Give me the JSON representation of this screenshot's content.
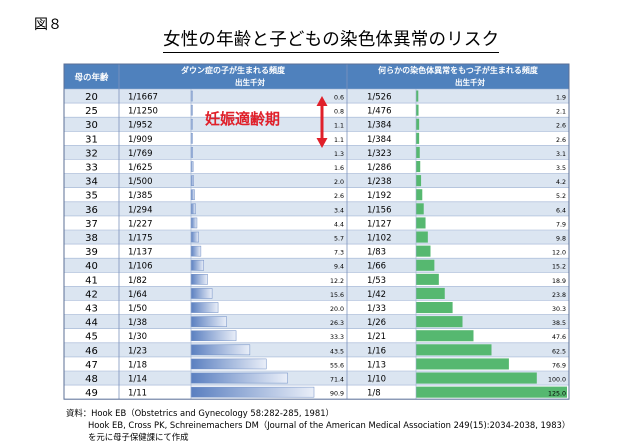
{
  "figure_label": "図８",
  "title": "女性の年齢と子どもの染色体異常のリスク",
  "annotation": "妊娠適齢期",
  "colors": {
    "header_bg": "#4f81bd",
    "row_alt": "#dbe5f1",
    "down_bar": "#7f9fd0",
    "chrom_bar": "#56b870",
    "annotation_text": "#e0202a",
    "annotation_arrow": "#e0202a"
  },
  "chart_data": {
    "type": "table",
    "columns": {
      "age": "母の年齢",
      "down_title": "ダウン症の子が生まれる頻度",
      "down_sub": "出生千対",
      "chrom_title": "何らかの染色体異常をもつ子が生まれる頻度",
      "chrom_sub": "出生千対"
    },
    "rows": [
      {
        "age": "20",
        "down_ratio": "1/1667",
        "down_per1000": 0.6,
        "chrom_ratio": "1/526",
        "chrom_per1000": 1.9
      },
      {
        "age": "25",
        "down_ratio": "1/1250",
        "down_per1000": 0.8,
        "chrom_ratio": "1/476",
        "chrom_per1000": 2.1
      },
      {
        "age": "30",
        "down_ratio": "1/952",
        "down_per1000": 1.1,
        "chrom_ratio": "1/384",
        "chrom_per1000": 2.6
      },
      {
        "age": "31",
        "down_ratio": "1/909",
        "down_per1000": 1.1,
        "chrom_ratio": "1/384",
        "chrom_per1000": 2.6
      },
      {
        "age": "32",
        "down_ratio": "1/769",
        "down_per1000": 1.3,
        "chrom_ratio": "1/323",
        "chrom_per1000": 3.1
      },
      {
        "age": "33",
        "down_ratio": "1/625",
        "down_per1000": 1.6,
        "chrom_ratio": "1/286",
        "chrom_per1000": 3.5
      },
      {
        "age": "34",
        "down_ratio": "1/500",
        "down_per1000": 2.0,
        "chrom_ratio": "1/238",
        "chrom_per1000": 4.2
      },
      {
        "age": "35",
        "down_ratio": "1/385",
        "down_per1000": 2.6,
        "chrom_ratio": "1/192",
        "chrom_per1000": 5.2
      },
      {
        "age": "36",
        "down_ratio": "1/294",
        "down_per1000": 3.4,
        "chrom_ratio": "1/156",
        "chrom_per1000": 6.4
      },
      {
        "age": "37",
        "down_ratio": "1/227",
        "down_per1000": 4.4,
        "chrom_ratio": "1/127",
        "chrom_per1000": 7.9
      },
      {
        "age": "38",
        "down_ratio": "1/175",
        "down_per1000": 5.7,
        "chrom_ratio": "1/102",
        "chrom_per1000": 9.8
      },
      {
        "age": "39",
        "down_ratio": "1/137",
        "down_per1000": 7.3,
        "chrom_ratio": "1/83",
        "chrom_per1000": 12.0
      },
      {
        "age": "40",
        "down_ratio": "1/106",
        "down_per1000": 9.4,
        "chrom_ratio": "1/66",
        "chrom_per1000": 15.2
      },
      {
        "age": "41",
        "down_ratio": "1/82",
        "down_per1000": 12.2,
        "chrom_ratio": "1/53",
        "chrom_per1000": 18.9
      },
      {
        "age": "42",
        "down_ratio": "1/64",
        "down_per1000": 15.6,
        "chrom_ratio": "1/42",
        "chrom_per1000": 23.8
      },
      {
        "age": "43",
        "down_ratio": "1/50",
        "down_per1000": 20.0,
        "chrom_ratio": "1/33",
        "chrom_per1000": 30.3
      },
      {
        "age": "44",
        "down_ratio": "1/38",
        "down_per1000": 26.3,
        "chrom_ratio": "1/26",
        "chrom_per1000": 38.5
      },
      {
        "age": "45",
        "down_ratio": "1/30",
        "down_per1000": 33.3,
        "chrom_ratio": "1/21",
        "chrom_per1000": 47.6
      },
      {
        "age": "46",
        "down_ratio": "1/23",
        "down_per1000": 43.5,
        "chrom_ratio": "1/16",
        "chrom_per1000": 62.5
      },
      {
        "age": "47",
        "down_ratio": "1/18",
        "down_per1000": 55.6,
        "chrom_ratio": "1/13",
        "chrom_per1000": 76.9
      },
      {
        "age": "48",
        "down_ratio": "1/14",
        "down_per1000": 71.4,
        "chrom_ratio": "1/10",
        "chrom_per1000": 100.0
      },
      {
        "age": "49",
        "down_ratio": "1/11",
        "down_per1000": 90.9,
        "chrom_ratio": "1/8",
        "chrom_per1000": 125.0
      }
    ],
    "annotated_ages": [
      "20",
      "31"
    ]
  },
  "sources": [
    "資料：Hook EB（Obstetrics and Gynecology 58:282-285, 1981）",
    "Hook EB, Cross PK, Schreinemachers DM（Journal of the American Medical Association 249(15):2034-2038, 1983）",
    "を元に母子保健課にて作成"
  ]
}
